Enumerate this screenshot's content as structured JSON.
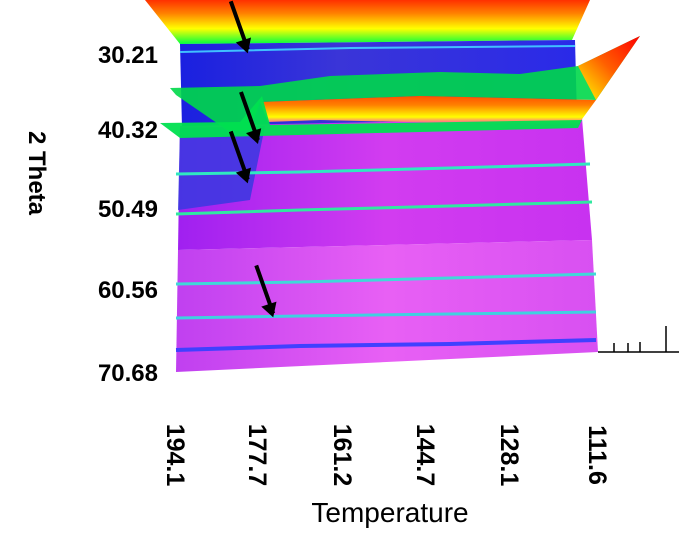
{
  "chart_data": {
    "type": "surface-3d",
    "xlabel": "Temperature",
    "ylabel": "2 Theta",
    "x_ticks": [
      "194.1",
      "177.7",
      "161.2",
      "144.7",
      "128.1",
      "111.6"
    ],
    "y_ticks": [
      "30.21",
      "40.32",
      "50.49",
      "60.56",
      "70.68"
    ],
    "x_range": [
      194.1,
      111.6
    ],
    "y_range": [
      30.21,
      70.68
    ],
    "colormap": [
      "#0000ff",
      "#ff00ff",
      "#00ff00",
      "#ffff00",
      "#ff8000",
      "#ff0000"
    ],
    "annotations": [
      {
        "type": "arrow",
        "x": 180,
        "y": 30.0
      },
      {
        "type": "arrow",
        "x": 178,
        "y": 41.5
      },
      {
        "type": "arrow",
        "x": 180,
        "y": 46.5
      },
      {
        "type": "arrow",
        "x": 175,
        "y": 63.5
      }
    ]
  }
}
